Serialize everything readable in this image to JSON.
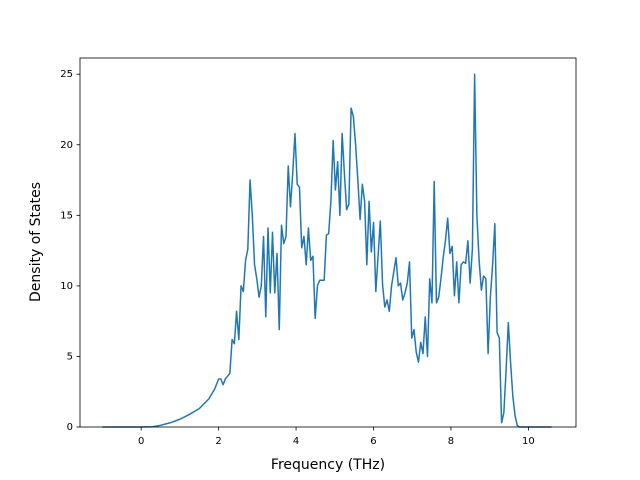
{
  "chart_data": {
    "type": "line",
    "xlabel": "Frequency (THz)",
    "ylabel": "Density of States",
    "xlim": [
      -1.58,
      11.23
    ],
    "ylim": [
      0,
      26.15
    ],
    "xticks": [
      0,
      2,
      4,
      6,
      8,
      10
    ],
    "yticks": [
      0,
      5,
      10,
      15,
      20,
      25
    ],
    "grid": false,
    "x": [
      -1,
      -0.5,
      0,
      0.3,
      0.5,
      0.75,
      1.0,
      1.25,
      1.5,
      1.75,
      1.9,
      2,
      2.058,
      2.116,
      2.174,
      2.232,
      2.29,
      2.348,
      2.406,
      2.464,
      2.522,
      2.58,
      2.638,
      2.696,
      2.754,
      2.812,
      2.87,
      2.928,
      2.986,
      3.044,
      3.102,
      3.16,
      3.218,
      3.276,
      3.334,
      3.392,
      3.45,
      3.508,
      3.566,
      3.624,
      3.682,
      3.74,
      3.798,
      3.856,
      3.914,
      3.972,
      4.03,
      4.088,
      4.146,
      4.204,
      4.262,
      4.32,
      4.378,
      4.436,
      4.494,
      4.552,
      4.61,
      4.668,
      4.726,
      4.784,
      4.842,
      4.9,
      4.958,
      5.016,
      5.074,
      5.132,
      5.19,
      5.248,
      5.306,
      5.364,
      5.422,
      5.48,
      5.538,
      5.596,
      5.654,
      5.712,
      5.77,
      5.828,
      5.886,
      5.944,
      6.002,
      6.06,
      6.118,
      6.176,
      6.234,
      6.292,
      6.35,
      6.408,
      6.466,
      6.524,
      6.582,
      6.64,
      6.698,
      6.756,
      6.814,
      6.872,
      6.93,
      6.988,
      7.046,
      7.104,
      7.162,
      7.22,
      7.278,
      7.336,
      7.394,
      7.452,
      7.51,
      7.568,
      7.626,
      7.684,
      7.742,
      7.8,
      7.858,
      7.916,
      7.974,
      8.032,
      8.09,
      8.148,
      8.206,
      8.264,
      8.322,
      8.38,
      8.438,
      8.496,
      8.554,
      8.612,
      8.67,
      8.728,
      8.786,
      8.844,
      8.902,
      8.96,
      9.018,
      9.076,
      9.134,
      9.192,
      9.25,
      9.308,
      9.366,
      9.424,
      9.482,
      9.54,
      9.598,
      9.656,
      9.714,
      9.772,
      10.6
    ],
    "series": [
      {
        "color": "#1f77b4",
        "values": [
          0,
          0,
          0,
          0.02,
          0.12,
          0.3,
          0.55,
          0.9,
          1.3,
          2.0,
          2.7,
          3.4,
          3.4,
          3.0,
          3.4,
          3.6,
          3.8,
          6.2,
          5.9,
          8.2,
          6.2,
          10,
          9.6,
          11.8,
          12.6,
          17.5,
          15,
          11.5,
          10.5,
          9.2,
          10,
          13.5,
          7.8,
          14.1,
          9.5,
          13.8,
          9.5,
          12.3,
          6.9,
          14.3,
          13,
          13.5,
          18.5,
          15.6,
          18,
          20.8,
          17.2,
          17,
          12.7,
          13.5,
          11.5,
          14.1,
          11.8,
          12.1,
          7.7,
          10,
          10.4,
          10.4,
          10.4,
          13.6,
          13.7,
          16,
          20.3,
          16.8,
          18.8,
          15,
          20.8,
          18,
          15.4,
          15.8,
          22.6,
          22,
          20,
          17.5,
          14.7,
          17.2,
          16,
          11.5,
          16,
          12.4,
          14.5,
          9.6,
          12.1,
          14.6,
          10.1,
          8.5,
          9.0,
          8.2,
          10,
          11,
          12,
          10,
          10.2,
          9.0,
          9.5,
          10.2,
          11.7,
          6.3,
          6.9,
          5.3,
          4.6,
          6.0,
          5.2,
          7.8,
          5.0,
          10.5,
          8.8,
          17.4,
          8.8,
          9.2,
          10.5,
          12,
          13.2,
          14.8,
          12.3,
          12.8,
          9.3,
          11.7,
          8.8,
          11.5,
          11.7,
          11.6,
          13.2,
          10.2,
          12.6,
          25,
          15,
          11.8,
          9.7,
          10.7,
          10.5,
          5.2,
          9.2,
          11.5,
          14.4,
          6.7,
          6.3,
          0.3,
          1.0,
          4,
          7.4,
          4.6,
          2.2,
          0.8,
          0.1,
          0,
          0
        ]
      }
    ]
  }
}
